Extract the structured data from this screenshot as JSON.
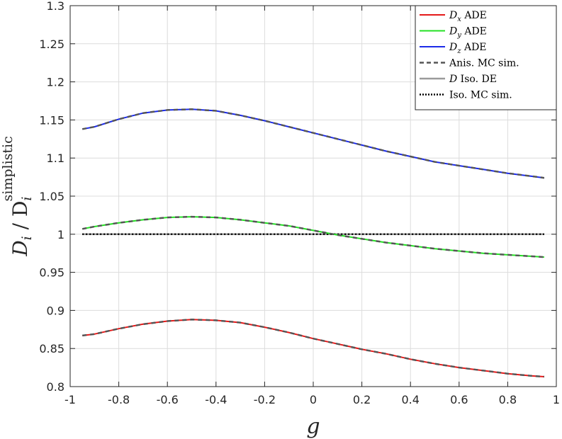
{
  "chart_data": {
    "type": "line",
    "xlabel": "g",
    "ylabel": {
      "main": "D",
      "sub": "i",
      "slash": " / D",
      "sub2": "i",
      "sup": "simplistic"
    },
    "xlim": [
      -1,
      1
    ],
    "ylim": [
      0.8,
      1.3
    ],
    "x_ticks": [
      "-1",
      "-0.8",
      "-0.6",
      "-0.4",
      "-0.2",
      "0",
      "0.2",
      "0.4",
      "0.6",
      "0.8",
      "1"
    ],
    "y_ticks": [
      "0.8",
      "0.85",
      "0.9",
      "0.95",
      "1",
      "1.05",
      "1.1",
      "1.15",
      "1.2",
      "1.25",
      "1.3"
    ],
    "grid": true,
    "legend_position": "top-right",
    "x": [
      -0.95,
      -0.9,
      -0.8,
      -0.7,
      -0.6,
      -0.5,
      -0.4,
      -0.3,
      -0.2,
      -0.1,
      0,
      0.1,
      0.2,
      0.3,
      0.4,
      0.5,
      0.6,
      0.7,
      0.8,
      0.9,
      0.95
    ],
    "series": [
      {
        "legend": {
          "base": "D",
          "sub": "x",
          "rest": " ADE"
        },
        "color": "#e41a1a",
        "style": "solid",
        "values": [
          0.867,
          0.869,
          0.876,
          0.882,
          0.886,
          0.888,
          0.887,
          0.884,
          0.878,
          0.871,
          0.863,
          0.856,
          0.849,
          0.843,
          0.836,
          0.83,
          0.825,
          0.821,
          0.817,
          0.814,
          0.813
        ]
      },
      {
        "legend": {
          "base": "D",
          "sub": "y",
          "rest": " ADE"
        },
        "color": "#23e023",
        "style": "solid",
        "values": [
          1.007,
          1.01,
          1.015,
          1.019,
          1.022,
          1.023,
          1.022,
          1.019,
          1.015,
          1.011,
          1.005,
          0.999,
          0.994,
          0.989,
          0.985,
          0.981,
          0.978,
          0.975,
          0.973,
          0.971,
          0.97
        ]
      },
      {
        "legend": {
          "base": "D",
          "sub": "z",
          "rest": " ADE"
        },
        "color": "#1c2be8",
        "style": "solid",
        "values": [
          1.138,
          1.141,
          1.151,
          1.159,
          1.163,
          1.164,
          1.162,
          1.156,
          1.149,
          1.141,
          1.133,
          1.125,
          1.117,
          1.109,
          1.102,
          1.095,
          1.09,
          1.085,
          1.08,
          1.076,
          1.074
        ]
      },
      {
        "legend": {
          "base": "",
          "sub": "",
          "rest": "Anis. MC sim."
        },
        "color": "#555555",
        "style": "dashed",
        "overlays": [
          "D_x",
          "D_y",
          "D_z"
        ]
      },
      {
        "legend": {
          "base": "D",
          "sub": "",
          "rest": " Iso. DE"
        },
        "color": "#9a9a9a",
        "style": "solid",
        "values": [
          1,
          1,
          1,
          1,
          1,
          1,
          1,
          1,
          1,
          1,
          1,
          1,
          1,
          1,
          1,
          1,
          1,
          1,
          1,
          1,
          1
        ]
      },
      {
        "legend": {
          "base": "",
          "sub": "",
          "rest": "Iso. MC sim."
        },
        "color": "#000000",
        "style": "dotted",
        "values": [
          1,
          1,
          1,
          1,
          1,
          1,
          1,
          1,
          1,
          1,
          1,
          1,
          1,
          1,
          1,
          1,
          1,
          1,
          1,
          1,
          1
        ]
      }
    ]
  }
}
